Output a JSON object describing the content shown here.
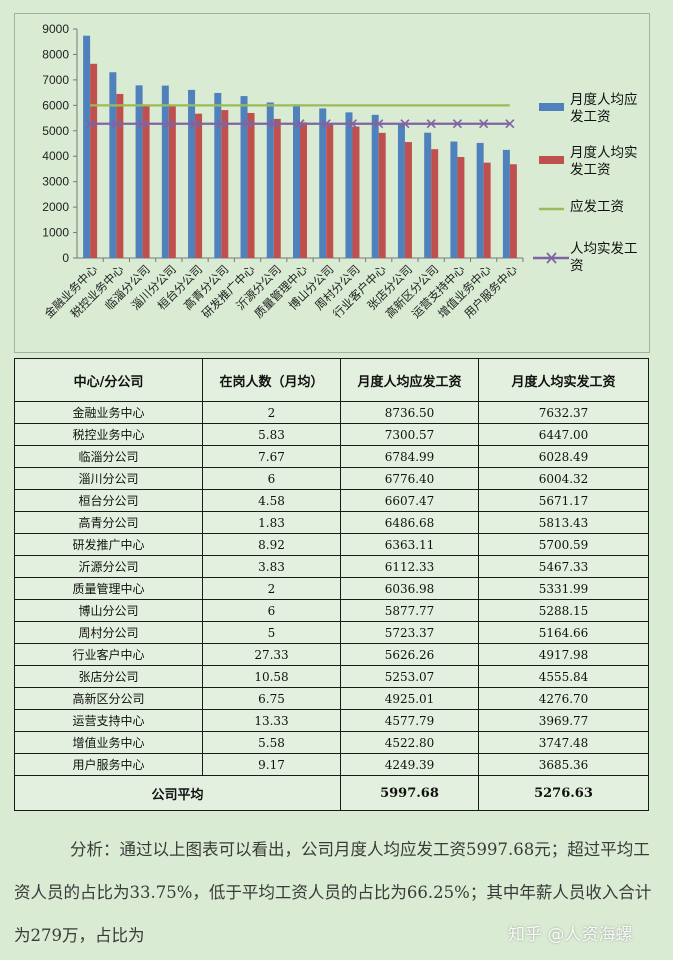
{
  "chart_data": {
    "type": "bar",
    "categories": [
      "金融业务中心",
      "税控业务中心",
      "临淄分公司",
      "淄川分公司",
      "桓台分公司",
      "高青分公司",
      "研发推广中心",
      "沂源分公司",
      "质量管理中心",
      "博山分公司",
      "周村分公司",
      "行业客户中心",
      "张店分公司",
      "高新区分公司",
      "运营支持中心",
      "增值业务中心",
      "用户服务中心"
    ],
    "series": [
      {
        "name": "月度人均应发工资",
        "kind": "bar",
        "color": "#4f81bd",
        "values": [
          8736.5,
          7300.57,
          6784.99,
          6776.4,
          6607.47,
          6486.68,
          6363.11,
          6112.33,
          6036.98,
          5877.77,
          5723.37,
          5626.26,
          5253.07,
          4925.01,
          4577.79,
          4522.8,
          4249.39
        ]
      },
      {
        "name": "月度人均实发工资",
        "kind": "bar",
        "color": "#c0504d",
        "values": [
          7632.37,
          6447.0,
          6028.49,
          6004.32,
          5671.17,
          5813.43,
          5700.59,
          5467.33,
          5331.99,
          5288.15,
          5164.66,
          4917.98,
          4555.84,
          4276.7,
          3969.77,
          3747.48,
          3685.36
        ]
      },
      {
        "name": "应发工资",
        "kind": "line",
        "color": "#9bbb59",
        "value": 5997.68
      },
      {
        "name": "人均实发工资",
        "kind": "line-marker",
        "color": "#8064a2",
        "value": 5276.63
      }
    ],
    "yticks": [
      "0",
      "1000",
      "2000",
      "3000",
      "4000",
      "5000",
      "6000",
      "7000",
      "8000",
      "9000"
    ],
    "ylim": [
      0,
      9000
    ],
    "grid": false,
    "legend_position": "right"
  },
  "table": {
    "headers": [
      "中心/分公司",
      "在岗人数（月均）",
      "月度人均应发工资",
      "月度人均实发工资"
    ],
    "rows": [
      [
        "金融业务中心",
        "2",
        "8736.50",
        "7632.37"
      ],
      [
        "税控业务中心",
        "5.83",
        "7300.57",
        "6447.00"
      ],
      [
        "临淄分公司",
        "7.67",
        "6784.99",
        "6028.49"
      ],
      [
        "淄川分公司",
        "6",
        "6776.40",
        "6004.32"
      ],
      [
        "桓台分公司",
        "4.58",
        "6607.47",
        "5671.17"
      ],
      [
        "高青分公司",
        "1.83",
        "6486.68",
        "5813.43"
      ],
      [
        "研发推广中心",
        "8.92",
        "6363.11",
        "5700.59"
      ],
      [
        "沂源分公司",
        "3.83",
        "6112.33",
        "5467.33"
      ],
      [
        "质量管理中心",
        "2",
        "6036.98",
        "5331.99"
      ],
      [
        "博山分公司",
        "6",
        "5877.77",
        "5288.15"
      ],
      [
        "周村分公司",
        "5",
        "5723.37",
        "5164.66"
      ],
      [
        "行业客户中心",
        "27.33",
        "5626.26",
        "4917.98"
      ],
      [
        "张店分公司",
        "10.58",
        "5253.07",
        "4555.84"
      ],
      [
        "高新区分公司",
        "6.75",
        "4925.01",
        "4276.70"
      ],
      [
        "运营支持中心",
        "13.33",
        "4577.79",
        "3969.77"
      ],
      [
        "增值业务中心",
        "5.58",
        "4522.80",
        "3747.48"
      ],
      [
        "用户服务中心",
        "9.17",
        "4249.39",
        "3685.36"
      ]
    ],
    "total": {
      "label": "公司平均",
      "gross": "5997.68",
      "net": "5276.63"
    }
  },
  "analysis": "分析：通过以上图表可以看出，公司月度人均应发工资5997.68元；超过平均工资人员的占比为33.75%，低于平均工资人员的占比为66.25%；其中年薪人员收入合计为279万，占比为",
  "watermark": "知乎 @人资海螺"
}
